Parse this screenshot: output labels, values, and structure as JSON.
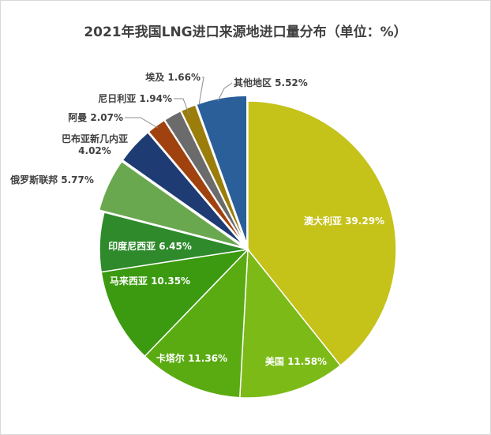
{
  "chart_data": {
    "type": "pie",
    "title": "2021年我国LNG进口来源地进口量分布（单位：%）",
    "slices": [
      {
        "name": "澳大利亚",
        "value": 39.29,
        "label": "澳大利亚 39.29%",
        "color": "#c5c21a",
        "explode": 0
      },
      {
        "name": "美国",
        "value": 11.58,
        "label": "美国 11.58%",
        "color": "#7cba18",
        "explode": 0
      },
      {
        "name": "卡塔尔",
        "value": 11.36,
        "label": "卡塔尔 11.36%",
        "color": "#5aab12",
        "explode": 0
      },
      {
        "name": "马来西亚",
        "value": 10.35,
        "label": "马来西亚 10.35%",
        "color": "#3b9a10",
        "explode": 0
      },
      {
        "name": "印度尼西亚",
        "value": 6.45,
        "label": "印度尼西亚 6.45%",
        "color": "#2e8a2a",
        "explode": 0
      },
      {
        "name": "俄罗斯联邦",
        "value": 5.77,
        "label": "俄罗斯联邦 5.77%",
        "color": "#6aa84f",
        "explode": 1
      },
      {
        "name": "巴布亚新几内亚",
        "value": 4.02,
        "label": "巴布亚新几内亚\n4.02%",
        "color": "#1f3b73",
        "explode": 1
      },
      {
        "name": "阿曼",
        "value": 2.07,
        "label": "阿曼 2.07%",
        "color": "#a0420f",
        "explode": 1
      },
      {
        "name": "尼日利亚",
        "value": 1.94,
        "label": "尼日利亚 1.94%",
        "color": "#6b6b6b",
        "explode": 1
      },
      {
        "name": "埃及",
        "value": 1.66,
        "label": "埃及 1.66%",
        "color": "#9a7d0a",
        "explode": 1
      },
      {
        "name": "其他地区",
        "value": 5.52,
        "label": "其他地区 5.52%",
        "color": "#2a5f9a",
        "explode": 1
      }
    ]
  }
}
